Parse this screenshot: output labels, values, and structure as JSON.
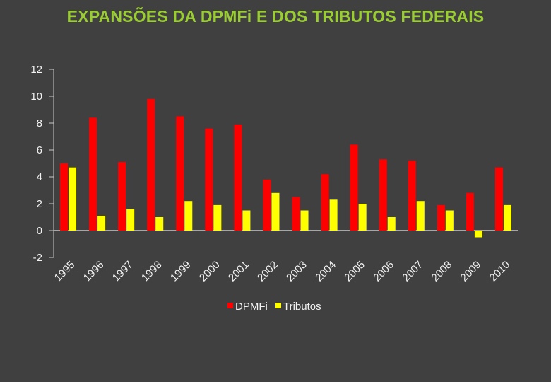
{
  "chart_data": {
    "type": "bar",
    "title": "EXPANSÕES DA DPMFi E DOS TRIBUTOS FEDERAIS",
    "categories": [
      "1995",
      "1996",
      "1997",
      "1998",
      "1999",
      "2000",
      "2001",
      "2002",
      "2003",
      "2004",
      "2005",
      "2006",
      "2007",
      "2008",
      "2009",
      "2010"
    ],
    "series": [
      {
        "name": "DPMFi",
        "color": "#FF0000",
        "values": [
          5.0,
          8.4,
          5.1,
          9.8,
          8.5,
          7.6,
          7.9,
          3.8,
          2.5,
          4.2,
          6.4,
          5.3,
          5.2,
          1.9,
          2.8,
          4.7
        ]
      },
      {
        "name": "Tributos",
        "color": "#FFFF00",
        "values": [
          4.7,
          1.1,
          1.6,
          1.0,
          2.2,
          1.9,
          1.5,
          2.8,
          1.5,
          2.3,
          2.0,
          1.0,
          2.2,
          1.5,
          -0.5,
          1.9
        ]
      }
    ],
    "ylim": [
      -2,
      12
    ],
    "yticks": [
      -2,
      0,
      2,
      4,
      6,
      8,
      10,
      12
    ],
    "xlabel": "",
    "ylabel": "",
    "legend": "bottom"
  }
}
